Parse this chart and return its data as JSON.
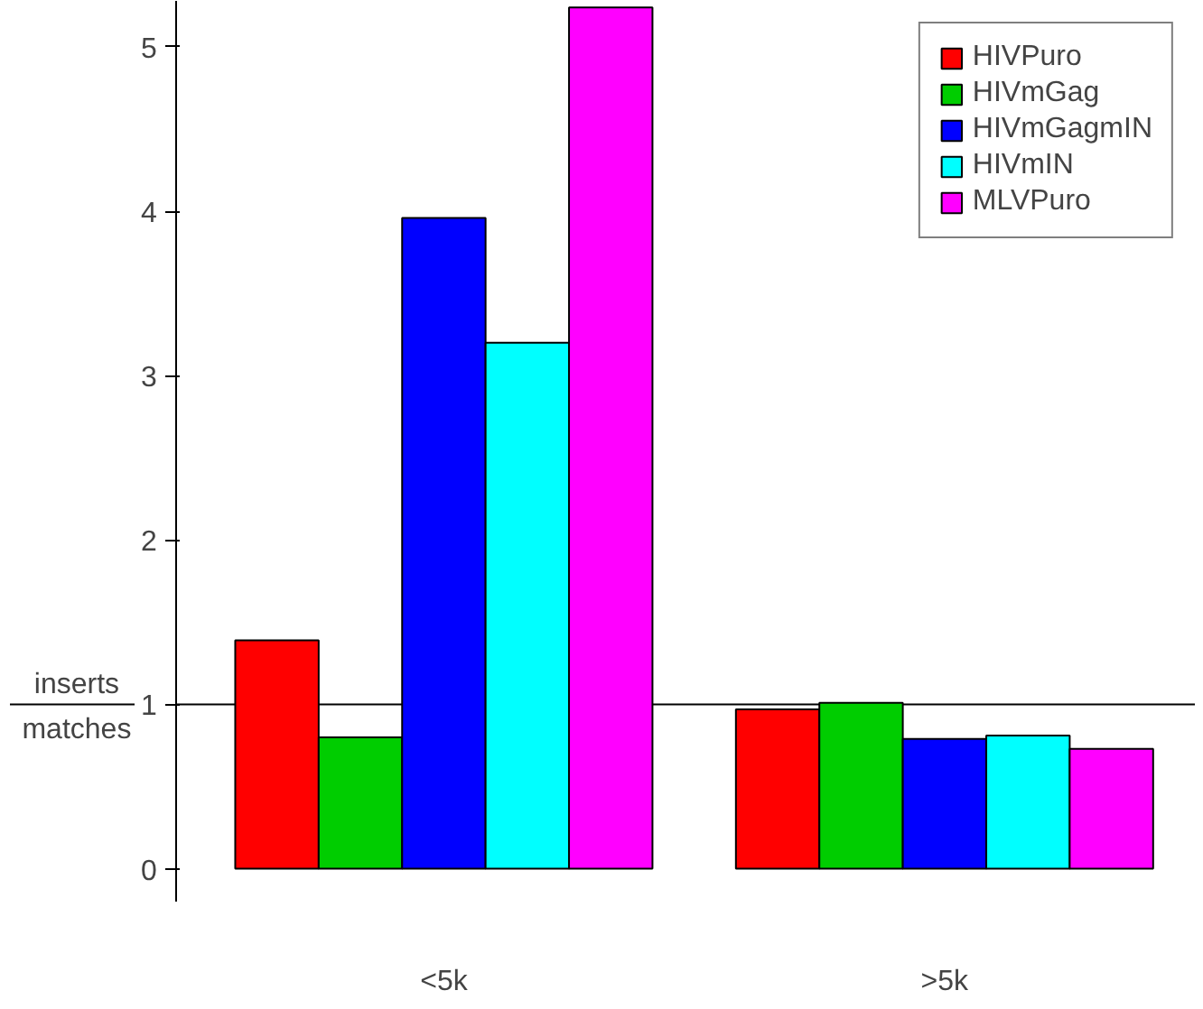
{
  "chart_data": {
    "type": "bar",
    "ylabel": "inserts\nmatches",
    "categories": [
      "<5k",
      ">5k"
    ],
    "series": [
      {
        "name": "HIVPuro",
        "color": "#ff0000",
        "values": [
          1.39,
          0.97
        ]
      },
      {
        "name": "HIVmGag",
        "color": "#00cd00",
        "values": [
          0.8,
          1.01
        ]
      },
      {
        "name": "HIVmGagmIN",
        "color": "#0000ff",
        "values": [
          3.96,
          0.79
        ]
      },
      {
        "name": "HIVmIN",
        "color": "#00ffff",
        "values": [
          3.2,
          0.81
        ]
      },
      {
        "name": "MLVPuro",
        "color": "#ff00ff",
        "values": [
          5.24,
          0.73
        ]
      }
    ],
    "ylim": [
      -0.2,
      5.28
    ],
    "yticks": [
      0,
      1,
      2,
      3,
      4,
      5
    ],
    "grid": false,
    "legend": "top right",
    "ref_lines": [
      {
        "axis": "y",
        "value": 1,
        "color": "#000000"
      }
    ]
  }
}
